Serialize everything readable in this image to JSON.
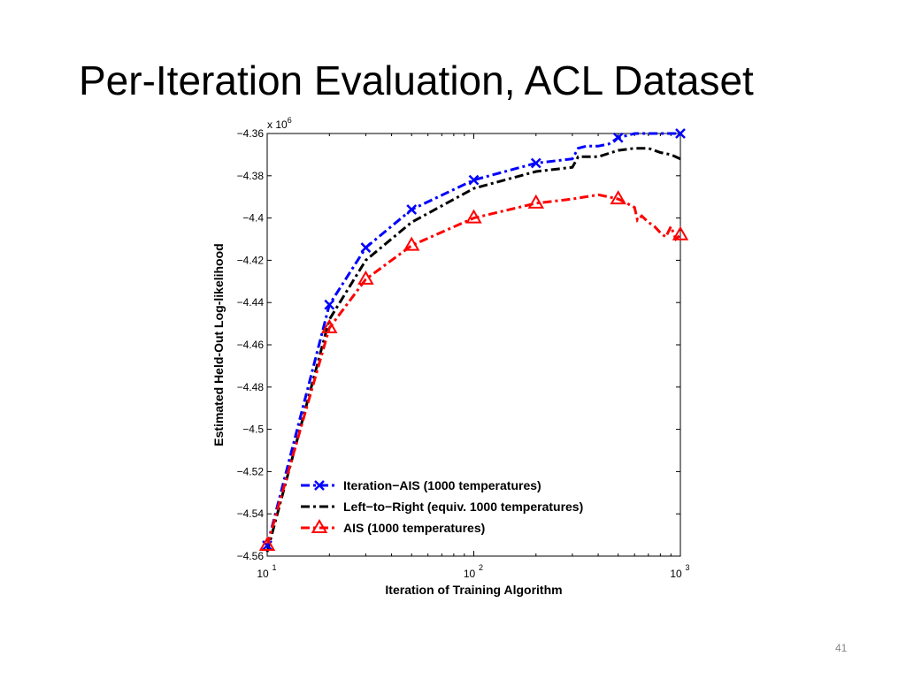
{
  "slide": {
    "title": "Per-Iteration Evaluation, ACL Dataset",
    "page_number": "41"
  },
  "chart_data": {
    "type": "line",
    "title": "",
    "xlabel": "Iteration of Training Algorithm",
    "ylabel": "Estimated Held-Out Log-likelihood",
    "x_scale": "log",
    "xlim": [
      10,
      1000
    ],
    "ylim": [
      -4.56,
      -4.36
    ],
    "y_multiplier_label": "x 10",
    "y_multiplier_exponent": "6",
    "x_ticks": [
      {
        "value": 10,
        "base": "10",
        "exp": "1"
      },
      {
        "value": 100,
        "base": "10",
        "exp": "2"
      },
      {
        "value": 1000,
        "base": "10",
        "exp": "3"
      }
    ],
    "y_ticks": [
      {
        "value": -4.36,
        "label": "−4.36"
      },
      {
        "value": -4.38,
        "label": "−4.38"
      },
      {
        "value": -4.4,
        "label": "−4.4"
      },
      {
        "value": -4.42,
        "label": "−4.42"
      },
      {
        "value": -4.44,
        "label": "−4.44"
      },
      {
        "value": -4.46,
        "label": "−4.46"
      },
      {
        "value": -4.48,
        "label": "−4.48"
      },
      {
        "value": -4.5,
        "label": "−4.5"
      },
      {
        "value": -4.52,
        "label": "−4.52"
      },
      {
        "value": -4.54,
        "label": "−4.54"
      },
      {
        "value": -4.56,
        "label": "−4.56"
      }
    ],
    "grid": false,
    "legend_position": "bottom-left",
    "series": [
      {
        "name": "Iteration−AIS (1000 temperatures)",
        "color": "#0000ff",
        "dash": "dash-dot",
        "marker": "x",
        "x": [
          10,
          20,
          30,
          50,
          100,
          200,
          300,
          320,
          350,
          400,
          450,
          500,
          600,
          700,
          800,
          900,
          1000
        ],
        "y": [
          -4.555,
          -4.441,
          -4.414,
          -4.396,
          -4.382,
          -4.374,
          -4.372,
          -4.367,
          -4.366,
          -4.366,
          -4.365,
          -4.362,
          -4.36,
          -4.36,
          -4.36,
          -4.36,
          -4.36
        ],
        "marker_x": [
          10,
          20,
          30,
          50,
          100,
          200,
          500,
          1000
        ],
        "marker_y": [
          -4.555,
          -4.441,
          -4.414,
          -4.396,
          -4.382,
          -4.374,
          -4.362,
          -4.36
        ]
      },
      {
        "name": "Left−to−Right (equiv. 1000 temperatures)",
        "color": "#000000",
        "dash": "dash-dot",
        "marker": "none",
        "x": [
          10,
          20,
          30,
          50,
          100,
          200,
          300,
          320,
          400,
          500,
          600,
          700,
          800,
          900,
          1000
        ],
        "y": [
          -4.558,
          -4.448,
          -4.42,
          -4.402,
          -4.386,
          -4.378,
          -4.376,
          -4.371,
          -4.371,
          -4.368,
          -4.367,
          -4.367,
          -4.369,
          -4.37,
          -4.372
        ],
        "marker_x": [],
        "marker_y": []
      },
      {
        "name": "AIS (1000 temperatures)",
        "color": "#ff0000",
        "dash": "dash-dot",
        "marker": "triangle",
        "x": [
          10,
          20,
          30,
          50,
          100,
          200,
          300,
          400,
          450,
          500,
          550,
          600,
          620,
          650,
          700,
          750,
          800,
          850,
          900,
          950,
          1000
        ],
        "y": [
          -4.555,
          -4.452,
          -4.429,
          -4.413,
          -4.4,
          -4.393,
          -4.391,
          -4.389,
          -4.39,
          -4.391,
          -4.393,
          -4.395,
          -4.401,
          -4.399,
          -4.402,
          -4.404,
          -4.407,
          -4.409,
          -4.404,
          -4.41,
          -4.408
        ],
        "marker_x": [
          10,
          20,
          30,
          50,
          100,
          200,
          500,
          1000
        ],
        "marker_y": [
          -4.555,
          -4.452,
          -4.429,
          -4.413,
          -4.4,
          -4.393,
          -4.391,
          -4.408
        ]
      }
    ]
  }
}
